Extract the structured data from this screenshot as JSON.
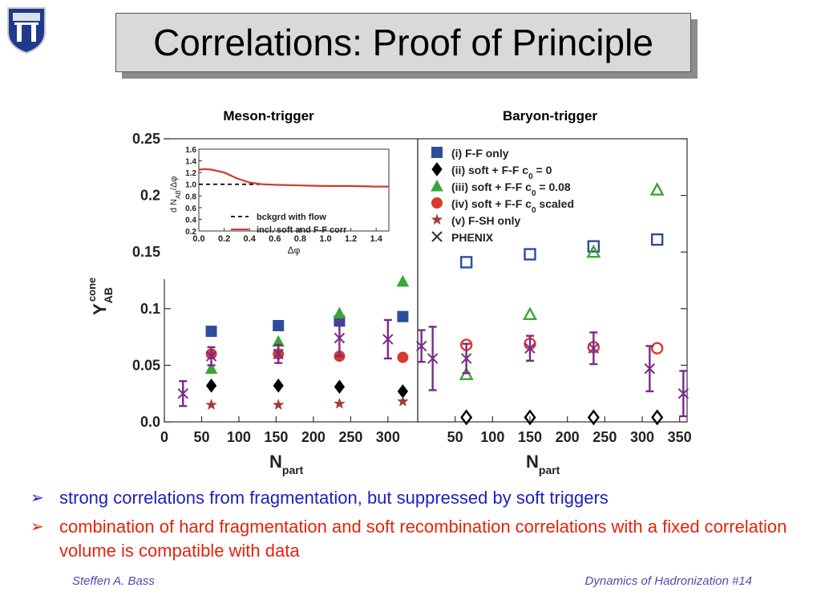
{
  "slide": {
    "title": "Correlations: Proof of Principle",
    "bullets": [
      "strong correlations from fragmentation, but suppressed by soft triggers",
      "combination of hard fragmentation and soft recombination correlations with a fixed correlation volume is compatible with data"
    ],
    "bullet_marker": "➢",
    "footer_left": "Steffen A. Bass",
    "footer_right": "Dynamics of Hadronization  #14"
  },
  "chart_data": {
    "type": "scatter",
    "panel_titles": [
      "Meson-trigger",
      "Baryon-trigger"
    ],
    "ylabel": "Y",
    "ylabel_sub": "AB",
    "ylabel_sup": "cone",
    "xlabel": "N",
    "xlabel_sub": "part",
    "ylim": [
      0,
      0.25
    ],
    "yticks": [
      "0.0",
      "0.05",
      "0.1",
      "0.15",
      "0.2",
      "0.25"
    ],
    "panels": [
      {
        "xlim": [
          0,
          340
        ],
        "xticks": [
          "0",
          "50",
          "100",
          "150",
          "200",
          "250",
          "300"
        ],
        "tick_values": [
          0,
          50,
          100,
          150,
          200,
          250,
          300
        ]
      },
      {
        "xlim": [
          0,
          360
        ],
        "xticks": [
          "50",
          "100",
          "150",
          "200",
          "250",
          "300",
          "350"
        ],
        "tick_values": [
          50,
          100,
          150,
          200,
          250,
          300,
          350
        ]
      }
    ],
    "legend": [
      {
        "label": "(i) F-F only",
        "color": "#2e4d9a",
        "marker": "square"
      },
      {
        "label": "(ii) soft + F-F c",
        "sub": "0",
        "tail": " = 0",
        "color": "#000000",
        "marker": "diamond"
      },
      {
        "label": "(iii) soft + F-F c",
        "sub": "0",
        "tail": " = 0.08",
        "color": "#3aa63a",
        "marker": "triangle"
      },
      {
        "label": "(iv) soft + F-F c",
        "sub": "0",
        "tail": " scaled",
        "color": "#d93a2e",
        "marker": "circle"
      },
      {
        "label": "(v) F-SH only",
        "color": "#a23a3a",
        "marker": "star"
      },
      {
        "label": "PHENIX",
        "color": "#333333",
        "marker": "cross"
      }
    ],
    "series": [
      {
        "name": "(i) F-F only",
        "color": "#2e4d9a",
        "marker": "square",
        "meson": [
          [
            63,
            0.08
          ],
          [
            153,
            0.085
          ],
          [
            235,
            0.089
          ],
          [
            320,
            0.093
          ]
        ],
        "baryon": [
          [
            65,
            0.141
          ],
          [
            150,
            0.148
          ],
          [
            235,
            0.155
          ],
          [
            320,
            0.161
          ]
        ]
      },
      {
        "name": "(ii) soft + F-F c0 = 0",
        "color": "#000000",
        "marker": "diamond",
        "meson": [
          [
            63,
            0.032
          ],
          [
            153,
            0.032
          ],
          [
            235,
            0.031
          ],
          [
            320,
            0.027
          ]
        ],
        "baryon": [
          [
            65,
            0.004
          ],
          [
            150,
            0.004
          ],
          [
            235,
            0.004
          ],
          [
            320,
            0.004
          ]
        ]
      },
      {
        "name": "(iii) soft + F-F c0 = 0.08",
        "color": "#3aa63a",
        "marker": "triangle",
        "meson": [
          [
            63,
            0.047
          ],
          [
            153,
            0.071
          ],
          [
            235,
            0.096
          ],
          [
            320,
            0.124
          ]
        ],
        "baryon": [
          [
            65,
            0.042
          ],
          [
            150,
            0.095
          ],
          [
            235,
            0.15
          ],
          [
            320,
            0.205
          ]
        ]
      },
      {
        "name": "(iv) soft + F-F c0 scaled",
        "color": "#d93a2e",
        "marker": "circle",
        "meson": [
          [
            63,
            0.06
          ],
          [
            153,
            0.06
          ],
          [
            235,
            0.058
          ],
          [
            320,
            0.057
          ]
        ],
        "baryon": [
          [
            65,
            0.068
          ],
          [
            150,
            0.069
          ],
          [
            235,
            0.066
          ],
          [
            320,
            0.065
          ]
        ]
      },
      {
        "name": "(v) F-SH only",
        "color": "#a23a3a",
        "marker": "star",
        "meson": [
          [
            63,
            0.015
          ],
          [
            153,
            0.015
          ],
          [
            235,
            0.016
          ],
          [
            320,
            0.018
          ]
        ],
        "baryon": []
      },
      {
        "name": "PHENIX",
        "color": "#7a2a8a",
        "marker": "cross",
        "meson": [
          [
            25,
            0.025,
            0.011
          ],
          [
            63,
            0.058,
            0.008
          ],
          [
            153,
            0.06,
            0.008
          ],
          [
            235,
            0.074,
            0.016
          ],
          [
            300,
            0.073,
            0.017
          ],
          [
            345,
            0.067,
            0.014
          ]
        ],
        "baryon": [
          [
            20,
            0.056,
            0.028
          ],
          [
            65,
            0.056,
            0.013
          ],
          [
            150,
            0.065,
            0.011
          ],
          [
            235,
            0.065,
            0.014
          ],
          [
            310,
            0.047,
            0.02
          ],
          [
            355,
            0.025,
            0.02
          ]
        ]
      }
    ],
    "inset": {
      "ylabel": "d N",
      "ylabel_sub": "AB",
      "ylabel_tail": "/Δφ",
      "xlabel": "Δφ",
      "xlim": [
        0,
        1.5
      ],
      "ylim": [
        0.2,
        1.6
      ],
      "xticks": [
        "0.0",
        "0.2",
        "0.4",
        "0.6",
        "0.8",
        "1.0",
        "1.2",
        "1.4"
      ],
      "yticks": [
        "0.2",
        "0.4",
        "0.6",
        "0.8",
        "1.0",
        "1.2",
        "1.4",
        "1.6"
      ],
      "legend": [
        "bckgrd with flow",
        "incl. soft and F-F corr"
      ],
      "background": {
        "x": [
          0.0,
          0.5
        ],
        "y": [
          1.0,
          1.0
        ]
      },
      "correlated": {
        "x": [
          0.0,
          0.05,
          0.1,
          0.2,
          0.3,
          0.4,
          0.5,
          0.6,
          0.8,
          1.0,
          1.2,
          1.4,
          1.5
        ],
        "y": [
          1.25,
          1.26,
          1.25,
          1.2,
          1.1,
          1.03,
          1.0,
          0.99,
          0.98,
          0.97,
          0.97,
          0.96,
          0.96
        ]
      }
    }
  }
}
